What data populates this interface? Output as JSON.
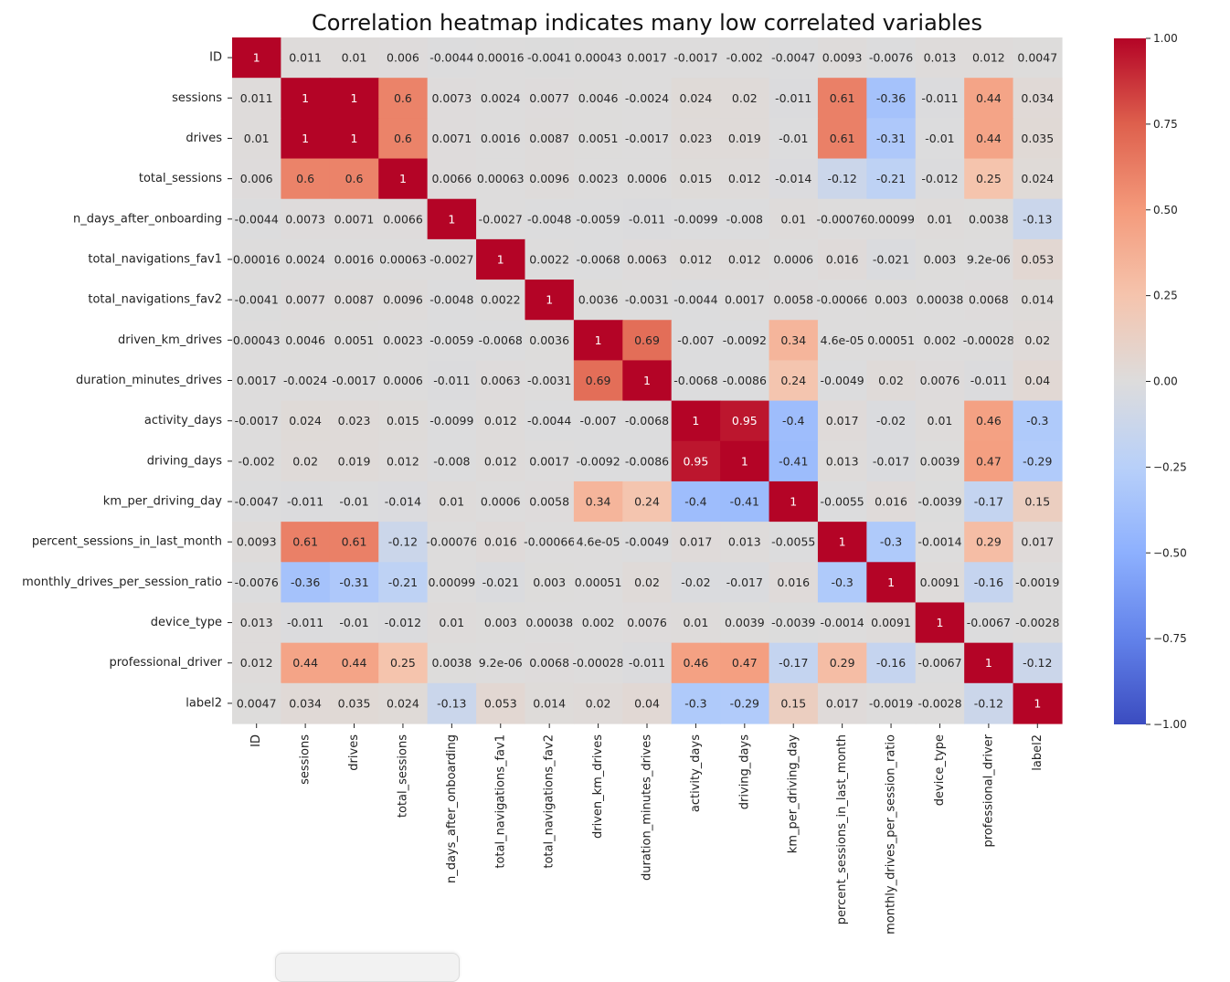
{
  "chart_data": {
    "type": "heatmap",
    "title": "Correlation heatmap indicates many low correlated variables",
    "colormap": "coolwarm",
    "vmin": -1.0,
    "vmax": 1.0,
    "colorbar_ticks": [
      "1.00",
      "0.75",
      "0.50",
      "0.25",
      "0.00",
      "−0.25",
      "−0.50",
      "−0.75",
      "−1.00"
    ],
    "colorbar_tick_values": [
      1.0,
      0.75,
      0.5,
      0.25,
      0.0,
      -0.25,
      -0.5,
      -0.75,
      -1.0
    ],
    "variables": [
      "ID",
      "sessions",
      "drives",
      "total_sessions",
      "n_days_after_onboarding",
      "total_navigations_fav1",
      "total_navigations_fav2",
      "driven_km_drives",
      "duration_minutes_drives",
      "activity_days",
      "driving_days",
      "km_per_driving_day",
      "percent_sessions_in_last_month",
      "monthly_drives_per_session_ratio",
      "device_type",
      "professional_driver",
      "label2"
    ],
    "labels": [
      [
        "1",
        "0.011",
        "0.01",
        "0.006",
        "-0.0044",
        "0.00016",
        "-0.0041",
        "0.00043",
        "0.0017",
        "-0.0017",
        "-0.002",
        "-0.0047",
        "0.0093",
        "-0.0076",
        "0.013",
        "0.012",
        "0.0047"
      ],
      [
        "0.011",
        "1",
        "1",
        "0.6",
        "0.0073",
        "0.0024",
        "0.0077",
        "0.0046",
        "-0.0024",
        "0.024",
        "0.02",
        "-0.011",
        "0.61",
        "-0.36",
        "-0.011",
        "0.44",
        "0.034"
      ],
      [
        "0.01",
        "1",
        "1",
        "0.6",
        "0.0071",
        "0.0016",
        "0.0087",
        "0.0051",
        "-0.0017",
        "0.023",
        "0.019",
        "-0.01",
        "0.61",
        "-0.31",
        "-0.01",
        "0.44",
        "0.035"
      ],
      [
        "0.006",
        "0.6",
        "0.6",
        "1",
        "0.0066",
        "0.00063",
        "0.0096",
        "0.0023",
        "0.0006",
        "0.015",
        "0.012",
        "-0.014",
        "-0.12",
        "-0.21",
        "-0.012",
        "0.25",
        "0.024"
      ],
      [
        "-0.0044",
        "0.0073",
        "0.0071",
        "0.0066",
        "1",
        "-0.0027",
        "-0.0048",
        "-0.0059",
        "-0.011",
        "-0.0099",
        "-0.008",
        "0.01",
        "-0.00076",
        "0.00099",
        "0.01",
        "0.0038",
        "-0.13"
      ],
      [
        "0.00016",
        "0.0024",
        "0.0016",
        "0.00063",
        "-0.0027",
        "1",
        "0.0022",
        "-0.0068",
        "0.0063",
        "0.012",
        "0.012",
        "0.0006",
        "0.016",
        "-0.021",
        "0.003",
        "9.2e-06",
        "0.053"
      ],
      [
        "-0.0041",
        "0.0077",
        "0.0087",
        "0.0096",
        "-0.0048",
        "0.0022",
        "1",
        "0.0036",
        "-0.0031",
        "-0.0044",
        "0.0017",
        "0.0058",
        "-0.00066",
        "0.003",
        "0.00038",
        "0.0068",
        "0.014"
      ],
      [
        "0.00043",
        "0.0046",
        "0.0051",
        "0.0023",
        "-0.0059",
        "-0.0068",
        "0.0036",
        "1",
        "0.69",
        "-0.007",
        "-0.0092",
        "0.34",
        "4.6e-05",
        "0.00051",
        "0.002",
        "-0.00028",
        "0.02"
      ],
      [
        "0.0017",
        "-0.0024",
        "-0.0017",
        "0.0006",
        "-0.011",
        "0.0063",
        "-0.0031",
        "0.69",
        "1",
        "-0.0068",
        "-0.0086",
        "0.24",
        "-0.0049",
        "0.02",
        "0.0076",
        "-0.011",
        "0.04"
      ],
      [
        "-0.0017",
        "0.024",
        "0.023",
        "0.015",
        "-0.0099",
        "0.012",
        "-0.0044",
        "-0.007",
        "-0.0068",
        "1",
        "0.95",
        "-0.4",
        "0.017",
        "-0.02",
        "0.01",
        "0.46",
        "-0.3"
      ],
      [
        "-0.002",
        "0.02",
        "0.019",
        "0.012",
        "-0.008",
        "0.012",
        "0.0017",
        "-0.0092",
        "-0.0086",
        "0.95",
        "1",
        "-0.41",
        "0.013",
        "-0.017",
        "0.0039",
        "0.47",
        "-0.29"
      ],
      [
        "-0.0047",
        "-0.011",
        "-0.01",
        "-0.014",
        "0.01",
        "0.0006",
        "0.0058",
        "0.34",
        "0.24",
        "-0.4",
        "-0.41",
        "1",
        "-0.0055",
        "0.016",
        "-0.0039",
        "-0.17",
        "0.15"
      ],
      [
        "0.0093",
        "0.61",
        "0.61",
        "-0.12",
        "-0.00076",
        "0.016",
        "-0.00066",
        "4.6e-05",
        "-0.0049",
        "0.017",
        "0.013",
        "-0.0055",
        "1",
        "-0.3",
        "-0.0014",
        "0.29",
        "0.017"
      ],
      [
        "-0.0076",
        "-0.36",
        "-0.31",
        "-0.21",
        "0.00099",
        "-0.021",
        "0.003",
        "0.00051",
        "0.02",
        "-0.02",
        "-0.017",
        "0.016",
        "-0.3",
        "1",
        "0.0091",
        "-0.16",
        "-0.0019"
      ],
      [
        "0.013",
        "-0.011",
        "-0.01",
        "-0.012",
        "0.01",
        "0.003",
        "0.00038",
        "0.002",
        "0.0076",
        "0.01",
        "0.0039",
        "-0.0039",
        "-0.0014",
        "0.0091",
        "1",
        "-0.0067",
        "-0.0028"
      ],
      [
        "0.012",
        "0.44",
        "0.44",
        "0.25",
        "0.0038",
        "9.2e-06",
        "0.0068",
        "-0.00028",
        "-0.011",
        "0.46",
        "0.47",
        "-0.17",
        "0.29",
        "-0.16",
        "-0.0067",
        "1",
        "-0.12"
      ],
      [
        "0.0047",
        "0.034",
        "0.035",
        "0.024",
        "-0.13",
        "0.053",
        "0.014",
        "0.02",
        "0.04",
        "-0.3",
        "-0.29",
        "0.15",
        "0.017",
        "-0.0019",
        "-0.0028",
        "-0.12",
        "1"
      ]
    ]
  }
}
